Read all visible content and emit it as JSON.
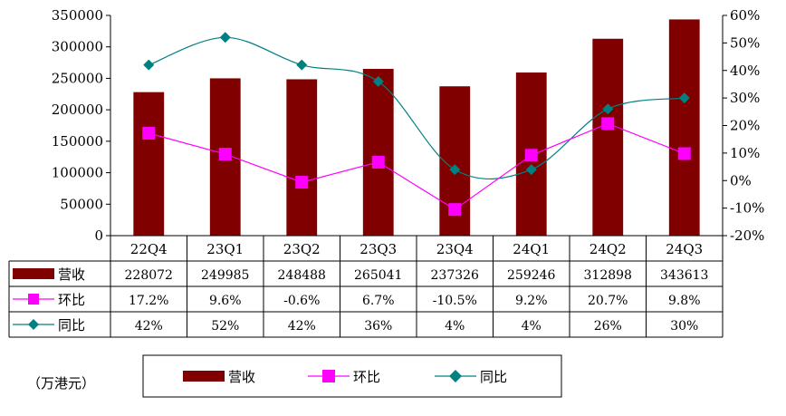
{
  "chart_data": {
    "type": "bar",
    "categories": [
      "22Q4",
      "23Q1",
      "23Q2",
      "23Q3",
      "23Q4",
      "24Q1",
      "24Q2",
      "24Q3"
    ],
    "series": [
      {
        "name": "营收",
        "type": "bar",
        "axis": "left",
        "color": "#800000",
        "values": [
          228072,
          249985,
          248488,
          265041,
          237326,
          259246,
          312898,
          343613
        ]
      },
      {
        "name": "环比",
        "type": "line",
        "axis": "right",
        "color": "#FF00FF",
        "marker": "square",
        "values": [
          17.2,
          9.6,
          -0.6,
          6.7,
          -10.5,
          9.2,
          20.7,
          9.8
        ]
      },
      {
        "name": "同比",
        "type": "line",
        "axis": "right",
        "color": "#008080",
        "marker": "diamond",
        "smooth": true,
        "values": [
          42,
          52,
          42,
          36,
          4,
          4,
          26,
          30
        ]
      }
    ],
    "table_labels": {
      "营收": [
        "228072",
        "249985",
        "248488",
        "265041",
        "237326",
        "259246",
        "312898",
        "343613"
      ],
      "环比": [
        "17.2%",
        "9.6%",
        "-0.6%",
        "6.7%",
        "-10.5%",
        "9.2%",
        "20.7%",
        "9.8%"
      ],
      "同比": [
        "42%",
        "52%",
        "42%",
        "36%",
        "4%",
        "4%",
        "26%",
        "30%"
      ]
    },
    "y_left": {
      "min": 0,
      "max": 350000,
      "step": 50000,
      "ticks": [
        "0",
        "50000",
        "100000",
        "150000",
        "200000",
        "250000",
        "300000",
        "350000"
      ]
    },
    "y_right": {
      "min": -20,
      "max": 60,
      "step": 10,
      "ticks": [
        "-20%",
        "-10%",
        "0%",
        "10%",
        "20%",
        "30%",
        "40%",
        "50%",
        "60%"
      ]
    },
    "legend_position": "bottom",
    "grid": false
  },
  "unit_note": "（万港元）"
}
